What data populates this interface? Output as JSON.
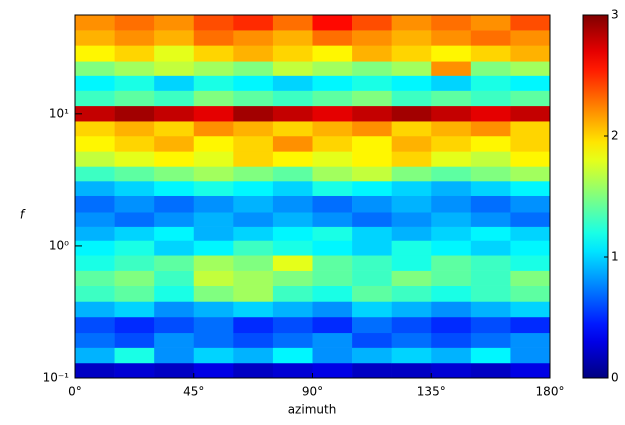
{
  "chart_data": {
    "type": "heatmap",
    "xlabel": "azimuth",
    "ylabel": "f",
    "x_edges": [
      0,
      15,
      30,
      45,
      60,
      75,
      90,
      105,
      120,
      135,
      150,
      165,
      180
    ],
    "y_edges": [
      0.1,
      0.13,
      0.17,
      0.22,
      0.29,
      0.38,
      0.5,
      0.65,
      0.85,
      1.1,
      1.4,
      1.8,
      2.4,
      3.1,
      4,
      5.2,
      6.8,
      8.8,
      11.5,
      15,
      19.5,
      25,
      33,
      43,
      56
    ],
    "z": [
      [
        0.2,
        0.25,
        0.2,
        0.3,
        0.2,
        0.25,
        0.3,
        0.2,
        0.2,
        0.25,
        0.2,
        0.3
      ],
      [
        0.9,
        1.2,
        0.8,
        1.0,
        0.9,
        1.1,
        0.8,
        0.9,
        1.0,
        0.9,
        1.1,
        0.8
      ],
      [
        0.7,
        0.6,
        0.8,
        0.7,
        0.6,
        0.7,
        0.8,
        0.6,
        0.7,
        0.6,
        0.7,
        0.8
      ],
      [
        0.6,
        0.5,
        0.6,
        0.7,
        0.5,
        0.6,
        0.5,
        0.7,
        0.6,
        0.5,
        0.6,
        0.5
      ],
      [
        0.9,
        1.0,
        0.8,
        0.9,
        1.0,
        0.9,
        0.8,
        1.0,
        0.9,
        0.8,
        0.9,
        1.0
      ],
      [
        1.3,
        1.4,
        1.2,
        1.5,
        1.6,
        1.3,
        1.2,
        1.4,
        1.3,
        1.2,
        1.3,
        1.4
      ],
      [
        1.4,
        1.5,
        1.3,
        1.7,
        1.6,
        1.5,
        1.4,
        1.3,
        1.5,
        1.4,
        1.3,
        1.5
      ],
      [
        1.2,
        1.3,
        1.4,
        1.6,
        1.5,
        1.8,
        1.4,
        1.3,
        1.2,
        1.4,
        1.3,
        1.2
      ],
      [
        1.1,
        1.2,
        1.0,
        1.1,
        1.3,
        1.2,
        1.1,
        1.0,
        1.2,
        1.1,
        1.0,
        1.1
      ],
      [
        0.9,
        1.0,
        1.1,
        0.9,
        1.0,
        1.1,
        1.2,
        1.0,
        0.9,
        1.0,
        1.1,
        1.0
      ],
      [
        0.8,
        0.7,
        0.8,
        0.9,
        0.8,
        0.9,
        0.8,
        0.7,
        0.8,
        0.9,
        0.8,
        0.7
      ],
      [
        0.7,
        0.8,
        0.7,
        0.8,
        0.9,
        0.8,
        0.7,
        0.8,
        0.9,
        0.8,
        0.7,
        0.8
      ],
      [
        0.9,
        1.0,
        1.1,
        1.2,
        1.1,
        1.0,
        1.2,
        1.1,
        1.0,
        0.9,
        1.0,
        1.1
      ],
      [
        1.3,
        1.4,
        1.5,
        1.6,
        1.5,
        1.4,
        1.6,
        1.7,
        1.5,
        1.4,
        1.5,
        1.6
      ],
      [
        1.7,
        1.8,
        1.9,
        1.8,
        2.0,
        1.9,
        1.8,
        1.9,
        2.0,
        1.8,
        1.7,
        1.9
      ],
      [
        1.9,
        2.0,
        2.1,
        1.9,
        2.0,
        2.2,
        2.0,
        1.9,
        2.1,
        2.0,
        1.9,
        2.0
      ],
      [
        2.0,
        2.1,
        2.0,
        2.2,
        2.1,
        2.0,
        2.1,
        2.2,
        2.0,
        2.1,
        2.2,
        2.0
      ],
      [
        2.8,
        2.9,
        2.8,
        2.7,
        2.9,
        2.8,
        2.7,
        2.8,
        2.9,
        2.8,
        2.7,
        2.8
      ],
      [
        1.3,
        1.4,
        1.3,
        1.5,
        1.4,
        1.3,
        1.4,
        1.5,
        1.3,
        1.4,
        1.3,
        1.4
      ],
      [
        1.1,
        1.2,
        1.0,
        1.2,
        1.1,
        1.0,
        1.1,
        1.2,
        1.1,
        1.0,
        1.2,
        1.1
      ],
      [
        1.5,
        1.6,
        1.7,
        1.6,
        1.5,
        1.7,
        1.6,
        1.5,
        1.6,
        2.2,
        1.5,
        1.6
      ],
      [
        1.9,
        2.0,
        1.8,
        2.0,
        2.1,
        2.0,
        1.9,
        2.1,
        2.0,
        1.9,
        2.0,
        2.1
      ],
      [
        2.1,
        2.2,
        2.1,
        2.3,
        2.2,
        2.1,
        2.3,
        2.2,
        2.1,
        2.2,
        2.3,
        2.2
      ],
      [
        2.2,
        2.3,
        2.2,
        2.4,
        2.5,
        2.3,
        2.6,
        2.4,
        2.2,
        2.3,
        2.2,
        2.4
      ]
    ],
    "xlim": [
      0,
      180
    ],
    "xticks": [
      {
        "value": 0,
        "label": "0°"
      },
      {
        "value": 45,
        "label": "45°"
      },
      {
        "value": 90,
        "label": "90°"
      },
      {
        "value": 135,
        "label": "135°"
      },
      {
        "value": 180,
        "label": "180°"
      }
    ],
    "ylim": [
      0.1,
      56
    ],
    "log_y": true,
    "yticks": [
      {
        "value": 0.1,
        "label": "10⁻¹"
      },
      {
        "value": 1,
        "label": "10⁰"
      },
      {
        "value": 10,
        "label": "10¹"
      }
    ],
    "colormap": "jet",
    "clim": [
      0,
      3
    ],
    "cticks": [
      0,
      1,
      2,
      3
    ]
  }
}
